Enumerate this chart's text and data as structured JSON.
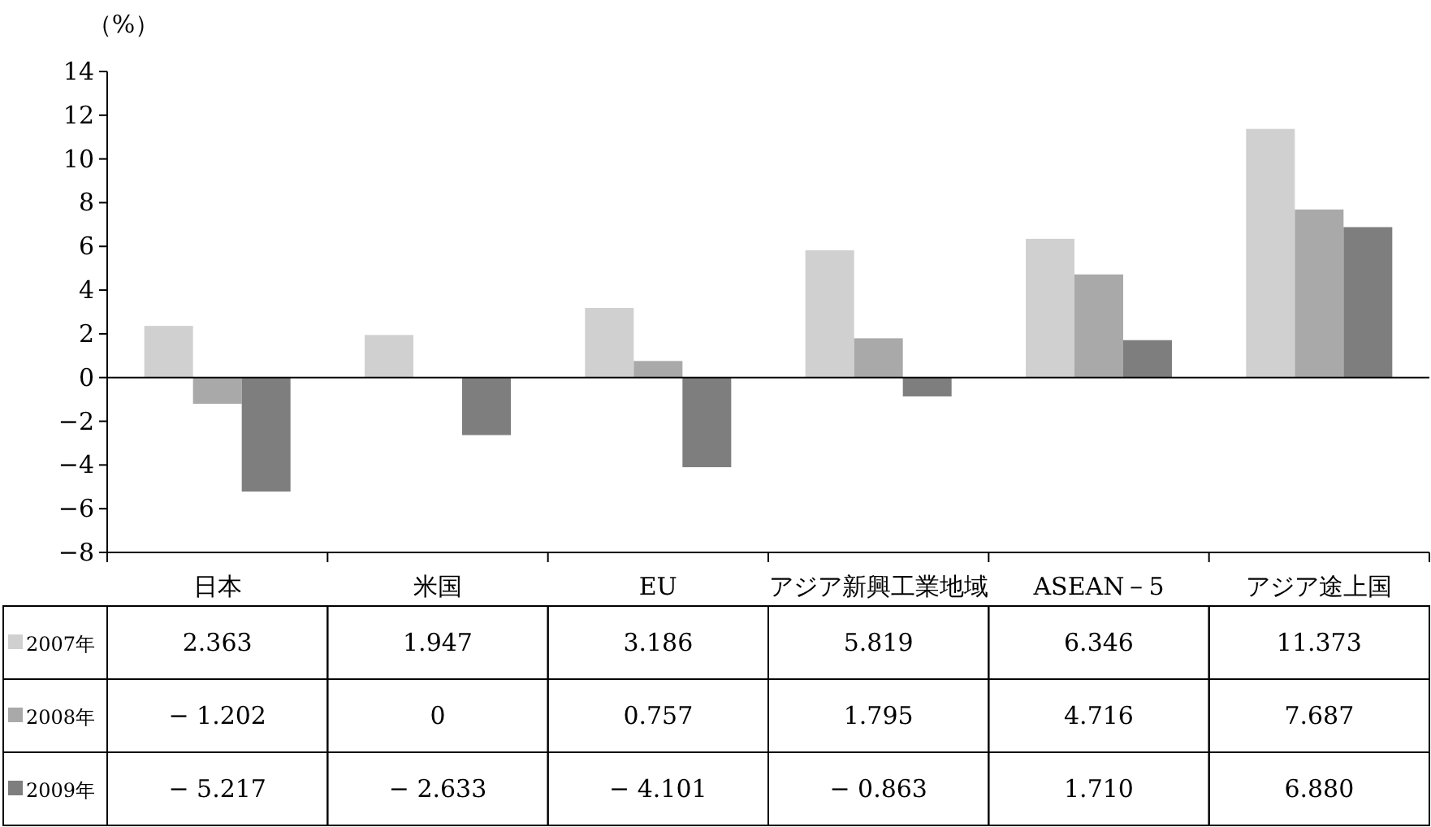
{
  "chart_data": {
    "type": "bar",
    "ylabel": "（%）",
    "categories": [
      "日本",
      "米国",
      "EU",
      "アジア新興工業地域",
      "ASEAN－5",
      "アジア途上国"
    ],
    "series": [
      {
        "name": "2007年",
        "color": "#d0d0d0",
        "values": [
          2.363,
          1.947,
          3.186,
          5.819,
          6.346,
          11.373
        ],
        "value_labels": [
          "2.363",
          "1.947",
          "3.186",
          "5.819",
          "6.346",
          "11.373"
        ]
      },
      {
        "name": "2008年",
        "color": "#a9a9a9",
        "values": [
          -1.202,
          0,
          0.757,
          1.795,
          4.716,
          7.687
        ],
        "value_labels": [
          "− 1.202",
          "0",
          "0.757",
          "1.795",
          "4.716",
          "7.687"
        ]
      },
      {
        "name": "2009年",
        "color": "#7e7e7e",
        "values": [
          -5.217,
          -2.633,
          -4.101,
          -0.863,
          1.71,
          6.88
        ],
        "value_labels": [
          "− 5.217",
          "− 2.633",
          "− 4.101",
          "− 0.863",
          "1.710",
          "6.880"
        ]
      }
    ],
    "ylim": [
      -8,
      14
    ],
    "yticks": [
      {
        "value": -8,
        "label": "−8"
      },
      {
        "value": -6,
        "label": "−6"
      },
      {
        "value": -4,
        "label": "−4"
      },
      {
        "value": -2,
        "label": "−2"
      },
      0,
      2,
      4,
      6,
      8,
      10,
      12,
      14
    ],
    "legend": "bottom"
  }
}
